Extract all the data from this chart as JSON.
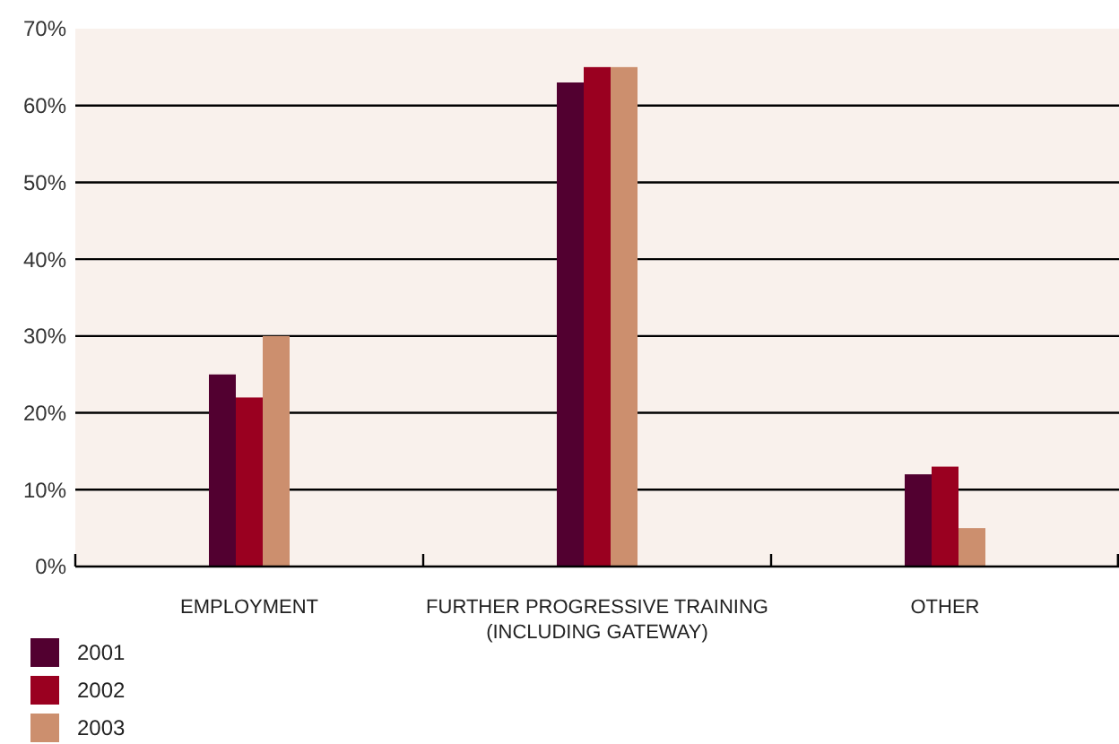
{
  "chart_data": {
    "type": "bar",
    "categories": [
      "EMPLOYMENT",
      "FURTHER PROGRESSIVE TRAINING (INCLUDING GATEWAY)",
      "OTHER"
    ],
    "series": [
      {
        "name": "2001",
        "color": "#520030",
        "values": [
          25,
          63,
          12
        ]
      },
      {
        "name": "2002",
        "color": "#9a0020",
        "values": [
          22,
          65,
          13
        ]
      },
      {
        "name": "2003",
        "color": "#cc8f6e",
        "values": [
          30,
          65,
          5
        ]
      }
    ],
    "ylim": [
      0,
      70
    ],
    "yticks": [
      {
        "value": 0,
        "label": "0%"
      },
      {
        "value": 10,
        "label": "10%"
      },
      {
        "value": 20,
        "label": "20%"
      },
      {
        "value": 30,
        "label": "30%"
      },
      {
        "value": 40,
        "label": "40%"
      },
      {
        "value": 50,
        "label": "50%"
      },
      {
        "value": 60,
        "label": "60%"
      },
      {
        "value": 70,
        "label": "70%"
      }
    ],
    "grid": "y",
    "legend": "bottom left"
  }
}
